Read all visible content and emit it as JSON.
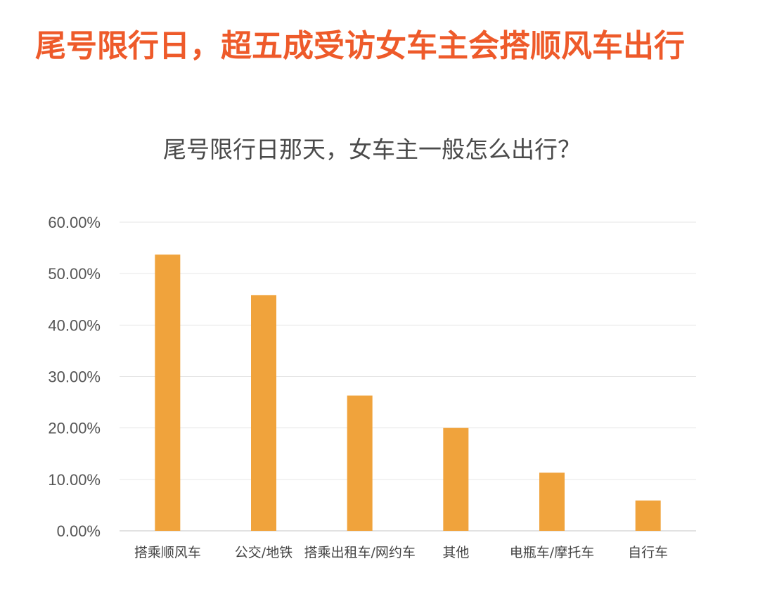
{
  "headline": "尾号限行日，超五成受访女车主会搭顺风车出行",
  "chart_data": {
    "type": "bar",
    "title": "尾号限行日那天，女车主一般怎么出行？",
    "categories": [
      "搭乘顺风车",
      "公交/地铁",
      "搭乘出租车/网约车",
      "其他",
      "电瓶车/摩托车",
      "自行车"
    ],
    "values": [
      53.7,
      45.8,
      26.3,
      20.0,
      11.3,
      5.9
    ],
    "ylim": [
      0,
      60
    ],
    "yticks": [
      0,
      10,
      20,
      30,
      40,
      50,
      60
    ],
    "ytick_labels": [
      "0.00%",
      "10.00%",
      "20.00%",
      "30.00%",
      "40.00%",
      "50.00%",
      "60.00%"
    ],
    "xlabel": "",
    "ylabel": "",
    "grid": true,
    "legend": "none",
    "colors": {
      "bar": "#f0a33c",
      "headline": "#ee5a2a"
    }
  }
}
